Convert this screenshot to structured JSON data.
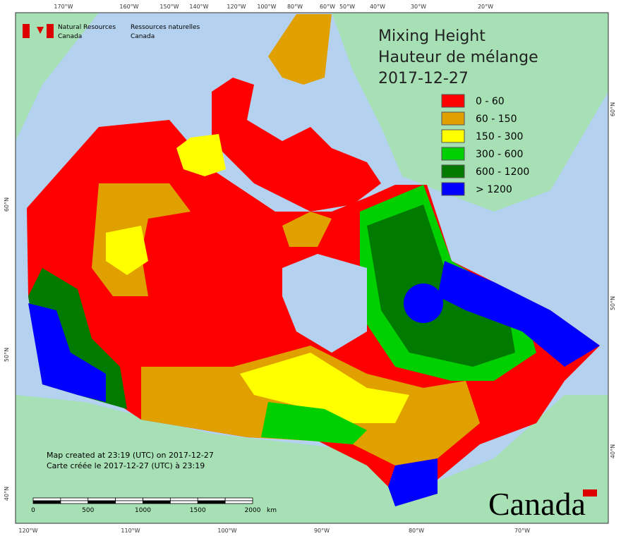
{
  "header": {
    "agency_en": [
      "Natural Resources",
      "Canada"
    ],
    "agency_fr": [
      "Ressources naturelles",
      "Canada"
    ]
  },
  "title": {
    "en": "Mixing Height",
    "fr": "Hauteur de mélange",
    "date": "2017-12-27"
  },
  "legend": [
    {
      "label": "0 - 60",
      "color": "#ff0000"
    },
    {
      "label": "60 - 150",
      "color": "#e0a000"
    },
    {
      "label": "150 - 300",
      "color": "#ffff00"
    },
    {
      "label": "300 - 600",
      "color": "#00d000"
    },
    {
      "label": "600 - 1200",
      "color": "#007a00"
    },
    {
      "label": "> 1200",
      "color": "#0000ff"
    }
  ],
  "graticule": {
    "top": [
      "170°W",
      "160°W",
      "150°W",
      "140°W",
      "120°W",
      "100°W",
      "80°W",
      "60°W",
      "50°W",
      "40°W",
      "30°W",
      "20°W"
    ],
    "bottom": [
      "120°W",
      "110°W",
      "100°W",
      "90°W",
      "80°W",
      "70°W"
    ],
    "left": [
      "60°N",
      "50°N",
      "40°N"
    ],
    "right": [
      "60°N",
      "50°N",
      "40°N"
    ]
  },
  "credits": [
    "Map created at 23:19 (UTC) on 2017-12-27",
    "Carte créée le 2017-12-27 (UTC) à 23:19"
  ],
  "scale_bar": {
    "labels": [
      0,
      500,
      1000,
      1500,
      2000
    ],
    "unit": "km"
  },
  "wordmark": "Canada"
}
